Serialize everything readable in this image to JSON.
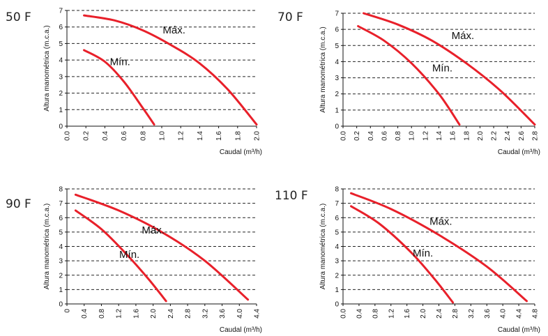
{
  "colors": {
    "curve": "#e8202a",
    "text": "#111111"
  },
  "chart_data": [
    {
      "type": "line",
      "title": "50 F",
      "xlabel": "Caudal (m³/h)",
      "ylabel": "Altura manométrica (m.c.a.)",
      "xlim": [
        0,
        2.0
      ],
      "ylim": [
        0,
        7
      ],
      "xticks": [
        "0.0",
        "0.2",
        "0.4",
        "0.6",
        "0.8",
        "1.0",
        "1.2",
        "1.4",
        "1.6",
        "1.8",
        "2.0"
      ],
      "yticks": [
        "0",
        "1",
        "2",
        "3",
        "4",
        "5",
        "6",
        "7"
      ],
      "grid": true,
      "series": [
        {
          "name": "Máx.",
          "x": [
            0.18,
            0.5,
            0.8,
            1.1,
            1.4,
            1.7,
            2.0
          ],
          "y": [
            6.7,
            6.4,
            5.8,
            4.9,
            3.8,
            2.2,
            0.1
          ]
        },
        {
          "name": "Mín.",
          "x": [
            0.18,
            0.4,
            0.6,
            0.8,
            0.92
          ],
          "y": [
            4.6,
            3.9,
            2.7,
            1.1,
            0.1
          ]
        }
      ]
    },
    {
      "type": "line",
      "title": "70 F",
      "xlabel": "Caudal (m³/h)",
      "ylabel": "Altura manométrica (m.c.a.)",
      "xlim": [
        0,
        2.8
      ],
      "ylim": [
        0,
        7
      ],
      "xticks": [
        "0.0",
        "0.2",
        "0.4",
        "0.6",
        "0.8",
        "1.0",
        "1.2",
        "1.4",
        "1.6",
        "1.8",
        "2.0",
        "2.2",
        "2.4",
        "2.6",
        "2.8"
      ],
      "yticks": [
        "0",
        "1",
        "2",
        "3",
        "4",
        "5",
        "6",
        "7"
      ],
      "grid": true,
      "series": [
        {
          "name": "Máx.",
          "x": [
            0.3,
            0.8,
            1.3,
            1.8,
            2.3,
            2.8
          ],
          "y": [
            7.0,
            6.3,
            5.3,
            3.9,
            2.2,
            0.1
          ]
        },
        {
          "name": "Mín.",
          "x": [
            0.22,
            0.6,
            1.0,
            1.4,
            1.7
          ],
          "y": [
            6.2,
            5.3,
            3.9,
            2.0,
            0.1
          ]
        }
      ]
    },
    {
      "type": "line",
      "title": "90 F",
      "xlabel": "Caudal (m³/h)",
      "ylabel": "Altura manométrica (m.c.a.)",
      "xlim": [
        0,
        4.4
      ],
      "ylim": [
        0,
        8
      ],
      "xticks": [
        "0",
        "0.4",
        "0.8",
        "1.2",
        "1.6",
        "2.0",
        "2.4",
        "2.8",
        "3.2",
        "3.6",
        "4.0",
        "4.4"
      ],
      "yticks": [
        "0",
        "1",
        "2",
        "3",
        "4",
        "5",
        "6",
        "7",
        "8"
      ],
      "grid": true,
      "series": [
        {
          "name": "Máx.",
          "x": [
            0.2,
            1.2,
            2.2,
            3.2,
            4.2
          ],
          "y": [
            7.6,
            6.5,
            5.0,
            3.0,
            0.3
          ]
        },
        {
          "name": "Mín.",
          "x": [
            0.2,
            0.8,
            1.4,
            1.9,
            2.3
          ],
          "y": [
            6.5,
            5.2,
            3.4,
            1.7,
            0.2
          ]
        }
      ]
    },
    {
      "type": "line",
      "title": "110 F",
      "xlabel": "Caudal (m³/h)",
      "ylabel": "Altura manométrica (m.c.a.)",
      "xlim": [
        0,
        4.8
      ],
      "ylim": [
        0,
        8
      ],
      "xticks": [
        "0.0",
        "0.4",
        "0.8",
        "1.2",
        "1.6",
        "2.0",
        "2.4",
        "2.8",
        "3.2",
        "3.6",
        "4.0",
        "4.4",
        "4.8"
      ],
      "yticks": [
        "0",
        "1",
        "2",
        "3",
        "4",
        "5",
        "6",
        "7",
        "8"
      ],
      "grid": true,
      "series": [
        {
          "name": "Máx.",
          "x": [
            0.2,
            1.2,
            2.4,
            3.6,
            4.6
          ],
          "y": [
            7.7,
            6.6,
            4.8,
            2.6,
            0.2
          ]
        },
        {
          "name": "Mín.",
          "x": [
            0.2,
            0.9,
            1.7,
            2.3,
            2.75
          ],
          "y": [
            6.8,
            5.6,
            3.6,
            1.7,
            0.1
          ]
        }
      ]
    }
  ]
}
